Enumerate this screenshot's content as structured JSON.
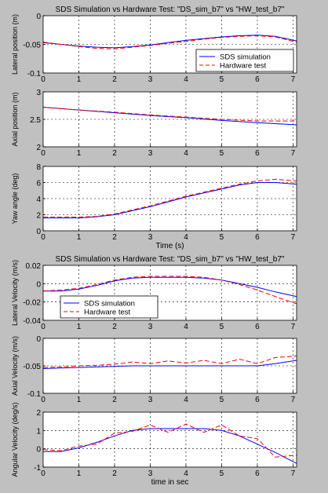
{
  "colors": {
    "background": "#c0c0c0",
    "axes_bg": "#ffffff",
    "sim": "#0000ff",
    "hw": "#ff0000",
    "text": "#000000",
    "grid": "#000000"
  },
  "chart_data": [
    {
      "type": "line",
      "title": "SDS Simulation vs Hardware Test:  \"DS_sim_b7\" vs \"HW_test_b7\"",
      "xlabel": "",
      "ylabel": "Lateral position  (m)",
      "xlim": [
        0,
        7.1
      ],
      "ylim": [
        -0.1,
        0
      ],
      "xticks": [
        0,
        1,
        2,
        3,
        4,
        5,
        6,
        7
      ],
      "yticks": [
        0,
        -0.05,
        -0.1
      ],
      "ytick_labels": [
        "0",
        "-0.05",
        "-0.1"
      ],
      "grid": true,
      "legend": {
        "position": "lower-right",
        "entries": [
          "SDS simulation",
          "Hardware test"
        ]
      },
      "series": [
        {
          "name": "SDS simulation",
          "color": "#0000ff",
          "style": "solid",
          "x": [
            0,
            0.5,
            1,
            1.5,
            2,
            2.5,
            3,
            3.5,
            4,
            4.5,
            5,
            5.5,
            6,
            6.5,
            7.1
          ],
          "y": [
            -0.047,
            -0.05,
            -0.053,
            -0.055,
            -0.056,
            -0.054,
            -0.051,
            -0.047,
            -0.043,
            -0.04,
            -0.037,
            -0.035,
            -0.034,
            -0.036,
            -0.044
          ]
        },
        {
          "name": "Hardware test",
          "color": "#ff0000",
          "style": "dashed",
          "x": [
            0,
            0.5,
            1,
            1.5,
            2,
            2.5,
            3,
            3.5,
            4,
            4.5,
            5,
            5.5,
            6,
            6.5,
            7.1
          ],
          "y": [
            -0.046,
            -0.05,
            -0.054,
            -0.057,
            -0.058,
            -0.055,
            -0.052,
            -0.048,
            -0.045,
            -0.041,
            -0.038,
            -0.036,
            -0.035,
            -0.037,
            -0.046
          ]
        }
      ]
    },
    {
      "type": "line",
      "title": "",
      "xlabel": "",
      "ylabel": "Axial position  (m)",
      "xlim": [
        0,
        7.1
      ],
      "ylim": [
        2,
        3
      ],
      "xticks": [
        0,
        1,
        2,
        3,
        4,
        5,
        6,
        7
      ],
      "yticks": [
        3,
        2.5,
        2
      ],
      "ytick_labels": [
        "3",
        "2.5",
        "2"
      ],
      "grid": true,
      "series": [
        {
          "name": "SDS simulation",
          "color": "#0000ff",
          "style": "solid",
          "x": [
            0,
            1,
            2,
            3,
            4,
            5,
            6,
            7.1
          ],
          "y": [
            2.72,
            2.67,
            2.62,
            2.57,
            2.53,
            2.48,
            2.44,
            2.4
          ]
        },
        {
          "name": "Hardware test",
          "color": "#ff0000",
          "style": "dashed",
          "x": [
            0,
            1,
            2,
            3,
            4,
            5,
            6,
            7.1
          ],
          "y": [
            2.72,
            2.67,
            2.63,
            2.58,
            2.54,
            2.5,
            2.47,
            2.47
          ]
        }
      ]
    },
    {
      "type": "line",
      "title": "",
      "xlabel": "Time  (s)",
      "ylabel": "Yaw angle  (deg)",
      "xlim": [
        0,
        7.1
      ],
      "ylim": [
        0,
        8
      ],
      "xticks": [
        0,
        1,
        2,
        3,
        4,
        5,
        6,
        7
      ],
      "yticks": [
        8,
        6,
        4,
        2,
        0
      ],
      "ytick_labels": [
        "8",
        "6",
        "4",
        "2",
        "0"
      ],
      "grid": true,
      "series": [
        {
          "name": "SDS simulation",
          "color": "#0000ff",
          "style": "solid",
          "x": [
            0,
            0.5,
            1,
            1.5,
            2,
            2.5,
            3,
            3.5,
            4,
            4.5,
            5,
            5.5,
            6,
            6.5,
            7.1
          ],
          "y": [
            1.6,
            1.6,
            1.6,
            1.75,
            2.0,
            2.5,
            3.0,
            3.6,
            4.2,
            4.7,
            5.2,
            5.7,
            6.0,
            6.0,
            5.8
          ]
        },
        {
          "name": "Hardware test",
          "color": "#ff0000",
          "style": "dashed",
          "x": [
            0,
            0.5,
            1,
            1.5,
            2,
            2.5,
            3,
            3.5,
            4,
            4.5,
            5,
            5.5,
            6,
            6.5,
            7.1
          ],
          "y": [
            1.7,
            1.7,
            1.7,
            1.8,
            2.1,
            2.6,
            3.1,
            3.7,
            4.3,
            4.8,
            5.3,
            5.8,
            6.2,
            6.4,
            6.2
          ]
        }
      ]
    },
    {
      "type": "line",
      "title": "SDS Simulation vs Hardware Test:  \"DS_sim_b7\" vs \"HW_test_b7\"",
      "xlabel": "",
      "ylabel": "Lateral Velocity  (m/s)",
      "xlim": [
        0,
        7.1
      ],
      "ylim": [
        -0.04,
        0.02
      ],
      "xticks": [
        0,
        1,
        2,
        3,
        4,
        5,
        6,
        7
      ],
      "yticks": [
        0.02,
        0,
        -0.02,
        -0.04
      ],
      "ytick_labels": [
        "0.02",
        "0",
        "-0.02",
        "-0.04"
      ],
      "grid": true,
      "legend": {
        "position": "lower-left",
        "entries": [
          "SDS simulation",
          "Hardware test"
        ]
      },
      "series": [
        {
          "name": "SDS simulation",
          "color": "#0000ff",
          "style": "solid",
          "x": [
            0,
            0.5,
            1,
            1.5,
            2,
            2.5,
            3,
            3.5,
            4,
            4.5,
            5,
            5.5,
            6,
            6.5,
            7.1
          ],
          "y": [
            -0.008,
            -0.008,
            -0.006,
            -0.002,
            0.003,
            0.006,
            0.007,
            0.007,
            0.007,
            0.006,
            0.004,
            0.0,
            -0.004,
            -0.009,
            -0.014
          ]
        },
        {
          "name": "Hardware test",
          "color": "#ff0000",
          "style": "dashed",
          "x": [
            0,
            0.5,
            1,
            1.5,
            2,
            2.5,
            3,
            3.5,
            4,
            4.5,
            5,
            5.5,
            6,
            6.5,
            7.1
          ],
          "y": [
            -0.008,
            -0.007,
            -0.005,
            -0.001,
            0.004,
            0.007,
            0.008,
            0.008,
            0.008,
            0.007,
            0.004,
            -0.001,
            -0.007,
            -0.014,
            -0.022
          ]
        }
      ]
    },
    {
      "type": "line",
      "title": "",
      "xlabel": "",
      "ylabel": "Axial Velocity  (m/s)",
      "xlim": [
        0,
        7.1
      ],
      "ylim": [
        -0.1,
        0
      ],
      "xticks": [
        0,
        1,
        2,
        3,
        4,
        5,
        6,
        7
      ],
      "yticks": [
        0,
        -0.05,
        -0.1
      ],
      "ytick_labels": [
        "0",
        "-0.05",
        "-0.1"
      ],
      "grid": true,
      "series": [
        {
          "name": "SDS simulation",
          "color": "#0000ff",
          "style": "solid",
          "x": [
            0,
            0.5,
            1,
            1.5,
            2,
            2.5,
            3,
            3.5,
            4,
            4.5,
            5,
            5.5,
            6,
            6.5,
            7.1
          ],
          "y": [
            -0.055,
            -0.054,
            -0.053,
            -0.052,
            -0.051,
            -0.05,
            -0.05,
            -0.05,
            -0.05,
            -0.05,
            -0.05,
            -0.05,
            -0.05,
            -0.046,
            -0.04
          ]
        },
        {
          "name": "Hardware test",
          "color": "#ff0000",
          "style": "dashed",
          "x": [
            0,
            0.5,
            1,
            1.5,
            2,
            2.5,
            3,
            3.5,
            4,
            4.5,
            5,
            5.5,
            6,
            6.5,
            7.1
          ],
          "y": [
            -0.053,
            -0.052,
            -0.05,
            -0.049,
            -0.047,
            -0.043,
            -0.046,
            -0.041,
            -0.045,
            -0.04,
            -0.046,
            -0.038,
            -0.046,
            -0.035,
            -0.032
          ]
        }
      ]
    },
    {
      "type": "line",
      "title": "",
      "xlabel": "time in sec",
      "ylabel": "Angular Velocity  (deg/s)",
      "xlim": [
        0,
        7.1
      ],
      "ylim": [
        -1,
        2
      ],
      "xticks": [
        0,
        1,
        2,
        3,
        4,
        5,
        6,
        7
      ],
      "yticks": [
        2,
        1,
        0,
        -1
      ],
      "ytick_labels": [
        "2",
        "1",
        "0",
        "-1"
      ],
      "grid": true,
      "series": [
        {
          "name": "SDS simulation",
          "color": "#0000ff",
          "style": "solid",
          "x": [
            0,
            0.5,
            1,
            1.5,
            2,
            2.5,
            3,
            3.5,
            4,
            4.5,
            5,
            5.5,
            6,
            6.5,
            7.1
          ],
          "y": [
            -0.15,
            -0.15,
            0.05,
            0.35,
            0.7,
            1.0,
            1.1,
            1.1,
            1.1,
            1.1,
            1.0,
            0.7,
            0.25,
            -0.2,
            -0.8
          ]
        },
        {
          "name": "Hardware test",
          "color": "#ff0000",
          "style": "dashed",
          "x": [
            0,
            0.5,
            1,
            1.5,
            2,
            2.5,
            3,
            3.5,
            4,
            4.5,
            5,
            5.5,
            6,
            6.5,
            7.1
          ],
          "y": [
            -0.05,
            -0.1,
            0.15,
            0.25,
            0.85,
            0.95,
            1.3,
            0.9,
            1.35,
            0.9,
            1.3,
            0.7,
            0.55,
            -0.45,
            -0.35
          ]
        }
      ]
    }
  ]
}
